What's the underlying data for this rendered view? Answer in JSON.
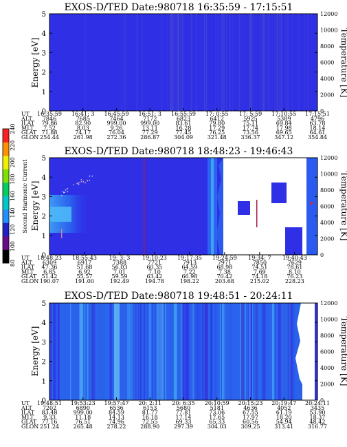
{
  "colors": {
    "background": "#2f2fe6",
    "low": "#3535d9",
    "streak": "#4a4ad8",
    "enhanced": "#2a6df0",
    "bright": "#3fa0f4",
    "white": "#ffffff",
    "red_line": "#a02040"
  },
  "chart_data": [
    {
      "type": "heatmap",
      "title": "EXOS-D/TED   Date:980718   16:35:59 - 17:15:51",
      "ylabel": "Energy [eV]",
      "y2label": "Temperature [K]",
      "ylim": [
        0,
        5
      ],
      "yticks": [
        "0",
        "1",
        "2",
        "3",
        "4",
        "5"
      ],
      "y2lim": [
        0,
        12000
      ],
      "y2ticks": [
        "0",
        "2000",
        "4000",
        "6000",
        "8000",
        "10000",
        "12000"
      ],
      "ephemeris_labels": [
        "UT",
        "ALT",
        "ILAT",
        "MLT",
        "GLAT",
        "GLON"
      ],
      "ephemeris": [
        [
          "16:35:59",
          "16:41: 3",
          "16:45:59",
          "16:51: 3",
          "16:55:59",
          "17: 0:55",
          "17: 5:59",
          "17:10:55",
          "17:15:51"
        ],
        [
          "7846",
          "7685",
          "7464",
          "7172",
          "6823",
          "6412",
          "5925",
          "5389",
          "4796"
        ],
        [
          "79.86",
          "82.90",
          "999.00",
          "999.00",
          "83.61",
          "79.80",
          "75.11",
          "69.84",
          "63.78"
        ],
        [
          "7.52",
          "8.03",
          "9.26",
          "13.11",
          "16.28",
          "17.29",
          "17.74",
          "17.98",
          "18.14"
        ],
        [
          "71.88",
          "74.17",
          "76.04",
          "77.29",
          "77.45",
          "76.25",
          "73.56",
          "69.65",
          "64.61"
        ],
        [
          "254.44",
          "261.98",
          "272.36",
          "286.87",
          "304.09",
          "321.48",
          "336.37",
          "347.12",
          "354.84"
        ]
      ]
    },
    {
      "type": "heatmap",
      "title": "EXOS-D/TED   Date:980718   18:48:23 - 19:46:43",
      "ylabel": "Energy [eV]",
      "y2label": "Temperature [K]",
      "ylim": [
        0,
        5
      ],
      "yticks": [
        "0",
        "1",
        "2",
        "3",
        "4",
        "5"
      ],
      "y2lim": [
        0,
        12000
      ],
      "y2ticks": [
        "0",
        "2000",
        "4000",
        "6000",
        "8000",
        "10000",
        "12000"
      ],
      "colorbar": {
        "label": "Second Harmonic Current",
        "ticks": [
          "80",
          "100",
          "120",
          "140",
          "160",
          "180",
          "200",
          "220",
          "240"
        ],
        "colors": [
          "#000000",
          "#6a0a8a",
          "#2020c8",
          "#1e90ff",
          "#00c8c8",
          "#00d060",
          "#80e000",
          "#f0f000",
          "#ff9000",
          "#ff2020"
        ]
      },
      "ephemeris_labels": [
        "UT",
        "ALT",
        "ILAT",
        "MLT",
        "GLAT",
        "GLON"
      ],
      "ephemeris": [
        [
          "18:48:23",
          "18:55:43",
          "19: 3: 3",
          "19:10:23",
          "19:17:35",
          "19:24:59",
          "19:34: 7",
          "19:40:43"
        ],
        [
          "6309",
          "6917",
          "7388",
          "7721",
          "7913",
          "7971",
          "7850",
          "7629"
        ],
        [
          "47.36",
          "51.68",
          "56.03",
          "60.35",
          "64.59",
          "68.98",
          "74.51",
          "78.61"
        ],
        [
          "6.85",
          "6.92",
          "7.01",
          "7.10",
          "7.22",
          "7.38",
          "7.69",
          "8.10"
        ],
        [
          "51.42",
          "55.57",
          "59.59",
          "63.42",
          "66.98",
          "70.42",
          "74.18",
          "76.23"
        ],
        [
          "190.07",
          "191.00",
          "192.49",
          "194.78",
          "198.22",
          "203.68",
          "215.02",
          "228.23"
        ]
      ]
    },
    {
      "type": "heatmap",
      "title": "EXOS-D/TED   Date:980718   19:48:51 - 20:24:11",
      "ylabel": "Energy [eV]",
      "y2label": "Temperature [K]",
      "ylim": [
        0,
        5
      ],
      "yticks": [
        "0",
        "1",
        "2",
        "3",
        "4",
        "5"
      ],
      "y2lim": [
        0,
        12000
      ],
      "y2ticks": [
        "0",
        "2000",
        "4000",
        "6000",
        "8000",
        "10000",
        "12000"
      ],
      "ephemeris_labels": [
        "UT",
        "ALT",
        "ILAT",
        "MLT",
        "GLAT",
        "GLON"
      ],
      "ephemeris": [
        [
          "19:48:51",
          "19:53:23",
          "19:57:47",
          "20: 2:11",
          "20: 6:35",
          "20:10:59",
          "20:15:23",
          "20:19:47",
          "20:24:11"
        ],
        [
          "7202",
          "6890",
          "6536",
          "6153",
          "5680",
          "5181",
          "4636",
          "4052",
          "3435"
        ],
        [
          "83.48",
          "999.00",
          "84.59",
          "81.77",
          "77.81",
          "73.06",
          "67.55",
          "61.19",
          "53.90"
        ],
        [
          "9.33",
          "11.18",
          "14.13",
          "16.18",
          "17.14",
          "17.65",
          "17.97",
          "18.20",
          "18.37"
        ],
        [
          "77.16",
          "76.51",
          "74.96",
          "72.55",
          "69.33",
          "65.33",
          "60.56",
          "54.94",
          "48.42"
        ],
        [
          "251.24",
          "265.48",
          "278.22",
          "288.90",
          "297.39",
          "304.03",
          "309.25",
          "313.41",
          "316.77"
        ]
      ]
    }
  ]
}
